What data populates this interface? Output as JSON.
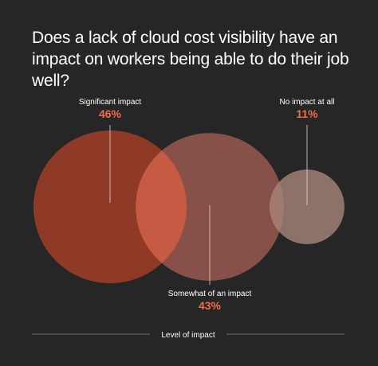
{
  "chart_data": {
    "type": "bubble",
    "title": "Does a lack of cloud cost visibility have an impact on workers being able to do their job well?",
    "xlabel": "Level of impact",
    "categories": [
      "Significant impact",
      "Somewhat of an impact",
      "No impact at all"
    ],
    "values": [
      46,
      43,
      11
    ],
    "value_labels": [
      "46%",
      "43%",
      "11%"
    ],
    "unit": "%",
    "colors": [
      "#8f3a26",
      "#875048",
      "#8d7269"
    ],
    "overlap_color": "#c75a43",
    "accent": "#f26b4a",
    "background": "#262626"
  }
}
